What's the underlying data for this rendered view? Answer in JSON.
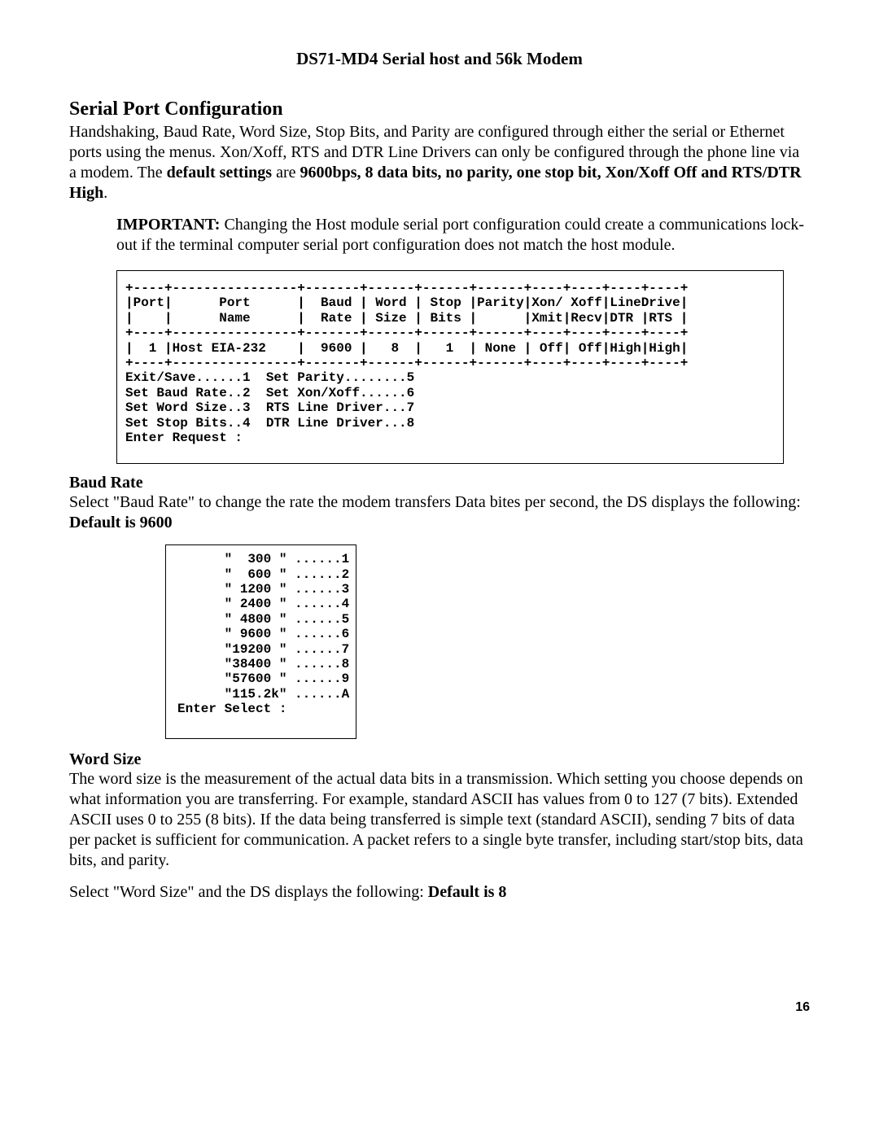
{
  "doc_title": "DS71-MD4 Serial host and 56k Modem",
  "section_title": "Serial Port Configuration",
  "intro_pre": "Handshaking, Baud Rate, Word Size, Stop Bits, and Parity are configured through either the serial or Ethernet ports using the menus.  Xon/Xoff, RTS and DTR Line Drivers can only be configured through the phone line via a modem.  The ",
  "intro_bold1": "default settings",
  "intro_mid": " are ",
  "intro_bold2": "9600bps, 8 data bits, no parity, one stop bit, Xon/Xoff Off and RTS/DTR High",
  "intro_post": ".",
  "important_label": "IMPORTANT:",
  "important_text": " Changing the Host module serial port configuration could create a communications lock-out if the terminal computer serial port configuration does not match the host module.",
  "terminal_main": "+----+----------------+-------+------+------+------+----+----+----+----+\n|Port|      Port      |  Baud | Word | Stop |Parity|Xon/ Xoff|LineDrive|\n|    |      Name      |  Rate | Size | Bits |      |Xmit|Recv|DTR |RTS |\n+----+----------------+-------+------+------+------+----+----+----+----+\n|  1 |Host EIA-232    |  9600 |   8  |   1  | None | Off| Off|High|High|\n+----+----------------+-------+------+------+------+----+----+----+----+\nExit/Save......1  Set Parity........5\nSet Baud Rate..2  Set Xon/Xoff......6\nSet Word Size..3  RTS Line Driver...7\nSet Stop Bits..4  DTR Line Driver...8\nEnter Request :",
  "baud_heading": "Baud Rate",
  "baud_text_pre": "Select \"Baud Rate\" to change the rate the modem transfers Data bites per second, the DS displays the following: ",
  "baud_text_bold": "Default is 9600",
  "baud_menu": "      \"  300 \" ......1\n      \"  600 \" ......2\n      \" 1200 \" ......3\n      \" 2400 \" ......4\n      \" 4800 \" ......5\n      \" 9600 \" ......6\n      \"19200 \" ......7\n      \"38400 \" ......8\n      \"57600 \" ......9\n      \"115.2k\" ......A\nEnter Select :",
  "word_heading": "Word Size",
  "word_para": "The word size is the measurement of the actual data bits in a transmission. Which setting you choose depends on what information you are transferring. For example, standard ASCII has values from 0 to 127 (7 bits). Extended ASCII uses 0 to 255 (8 bits). If the data being transferred is simple text (standard ASCII), sending 7 bits of data per packet is sufficient for communication. A packet refers to a single byte transfer, including start/stop bits, data bits, and parity.",
  "word_select_pre": "Select \"Word Size\" and the DS displays the following: ",
  "word_select_bold": "Default is 8",
  "page_number": "16"
}
